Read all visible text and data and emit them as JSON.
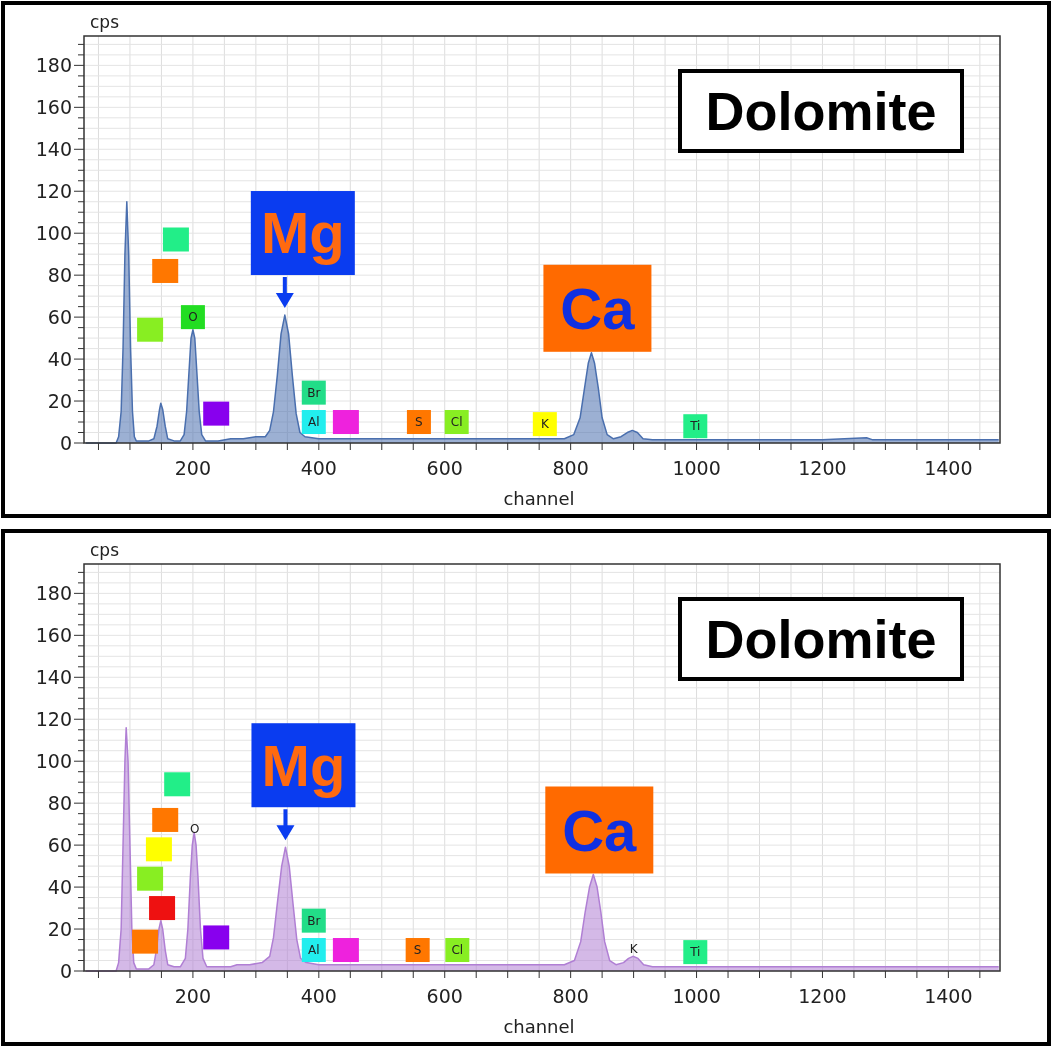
{
  "chart_data": [
    {
      "type": "area",
      "title": "Dolomite",
      "xlabel": "channel",
      "ylabel": "cps",
      "xlim": [
        27,
        1482
      ],
      "ylim": [
        0,
        194
      ],
      "xticks": [
        {
          "value": 50,
          "label": null
        },
        {
          "value": 100,
          "label": null
        },
        {
          "value": 150,
          "label": null
        },
        200,
        {
          "value": 250,
          "label": null
        },
        {
          "value": 300,
          "label": null
        },
        {
          "value": 350,
          "label": null
        },
        400,
        {
          "value": 450,
          "label": null
        },
        {
          "value": 500,
          "label": null
        },
        {
          "value": 550,
          "label": null
        },
        600,
        {
          "value": 650,
          "label": null
        },
        {
          "value": 700,
          "label": null
        },
        {
          "value": 750,
          "label": null
        },
        800,
        {
          "value": 850,
          "label": null
        },
        {
          "value": 900,
          "label": null
        },
        {
          "value": 950,
          "label": null
        },
        1000,
        {
          "value": 1050,
          "label": null
        },
        {
          "value": 1100,
          "label": null
        },
        {
          "value": 1150,
          "label": null
        },
        1200,
        {
          "value": 1250,
          "label": null
        },
        {
          "value": 1300,
          "label": null
        },
        {
          "value": 1350,
          "label": null
        },
        1400,
        {
          "value": 1450,
          "label": null
        }
      ],
      "yticks": [
        0,
        {
          "value": 5,
          "label": null
        },
        {
          "value": 10,
          "label": null
        },
        {
          "value": 15,
          "label": null
        },
        20,
        {
          "value": 25,
          "label": null
        },
        {
          "value": 30,
          "label": null
        },
        {
          "value": 35,
          "label": null
        },
        40,
        {
          "value": 45,
          "label": null
        },
        {
          "value": 50,
          "label": null
        },
        {
          "value": 55,
          "label": null
        },
        60,
        {
          "value": 65,
          "label": null
        },
        {
          "value": 70,
          "label": null
        },
        {
          "value": 75,
          "label": null
        },
        80,
        {
          "value": 85,
          "label": null
        },
        {
          "value": 90,
          "label": null
        },
        {
          "value": 95,
          "label": null
        },
        100,
        {
          "value": 105,
          "label": null
        },
        {
          "value": 110,
          "label": null
        },
        {
          "value": 115,
          "label": null
        },
        120,
        {
          "value": 125,
          "label": null
        },
        {
          "value": 130,
          "label": null
        },
        {
          "value": 135,
          "label": null
        },
        140,
        {
          "value": 145,
          "label": null
        },
        {
          "value": 150,
          "label": null
        },
        {
          "value": 155,
          "label": null
        },
        160,
        {
          "value": 165,
          "label": null
        },
        {
          "value": 170,
          "label": null
        },
        {
          "value": 175,
          "label": null
        },
        180,
        {
          "value": 185,
          "label": null
        },
        {
          "value": 190,
          "label": null
        }
      ],
      "grid": true,
      "series": [
        {
          "color": "#4a6fae",
          "x": [
            30,
            60,
            78,
            82,
            86,
            89,
            92,
            95,
            98,
            101,
            104,
            107,
            110,
            130,
            138,
            143,
            147,
            149,
            152,
            156,
            160,
            170,
            180,
            186,
            190,
            194,
            197,
            200,
            203,
            206,
            210,
            214,
            220,
            240,
            260,
            280,
            300,
            315,
            322,
            328,
            334,
            340,
            346,
            352,
            358,
            364,
            370,
            378,
            400,
            450,
            500,
            550,
            600,
            650,
            700,
            750,
            790,
            805,
            815,
            822,
            828,
            833,
            838,
            844,
            850,
            858,
            868,
            880,
            890,
            898,
            906,
            915,
            930,
            1000,
            1100,
            1200,
            1270,
            1280,
            1400,
            1480
          ],
          "values": [
            0,
            0,
            0,
            3,
            15,
            45,
            90,
            115,
            90,
            45,
            15,
            3,
            1,
            1,
            2,
            8,
            16,
            19,
            16,
            8,
            2,
            1,
            1,
            4,
            15,
            35,
            50,
            54,
            50,
            35,
            15,
            4,
            1,
            1,
            2,
            2,
            3,
            3,
            6,
            15,
            32,
            52,
            61,
            52,
            32,
            14,
            5,
            3,
            2,
            2,
            2,
            2,
            2,
            2,
            2,
            2,
            2,
            4,
            12,
            26,
            38,
            43,
            38,
            26,
            12,
            4,
            2,
            3,
            5,
            6,
            5,
            2,
            1.5,
            1.5,
            1.5,
            1.5,
            2.5,
            1.5,
            1.5,
            1.5
          ]
        }
      ],
      "annotations": [
        {
          "text": "Mg",
          "x": 346,
          "y": 61
        },
        {
          "text": "Ca",
          "x": 833,
          "y": 43
        },
        {
          "text": "O",
          "x": 200,
          "y": 60
        },
        {
          "text": "Br",
          "x": 392,
          "y": 24
        },
        {
          "text": "Al",
          "x": 392,
          "y": 10
        },
        {
          "text": "S",
          "x": 559,
          "y": 10
        },
        {
          "text": "Cl",
          "x": 619,
          "y": 10
        },
        {
          "text": "K",
          "x": 759,
          "y": 9
        },
        {
          "text": "Ti",
          "x": 998,
          "y": 8
        }
      ]
    },
    {
      "type": "area",
      "title": "Dolomite",
      "xlabel": "channel",
      "ylabel": "cps",
      "xlim": [
        27,
        1482
      ],
      "ylim": [
        0,
        194
      ],
      "xticks": [
        {
          "value": 50,
          "label": null
        },
        {
          "value": 100,
          "label": null
        },
        {
          "value": 150,
          "label": null
        },
        200,
        {
          "value": 250,
          "label": null
        },
        {
          "value": 300,
          "label": null
        },
        {
          "value": 350,
          "label": null
        },
        400,
        {
          "value": 450,
          "label": null
        },
        {
          "value": 500,
          "label": null
        },
        {
          "value": 550,
          "label": null
        },
        600,
        {
          "value": 650,
          "label": null
        },
        {
          "value": 700,
          "label": null
        },
        {
          "value": 750,
          "label": null
        },
        800,
        {
          "value": 850,
          "label": null
        },
        {
          "value": 900,
          "label": null
        },
        {
          "value": 950,
          "label": null
        },
        1000,
        {
          "value": 1050,
          "label": null
        },
        {
          "value": 1100,
          "label": null
        },
        {
          "value": 1150,
          "label": null
        },
        1200,
        {
          "value": 1250,
          "label": null
        },
        {
          "value": 1300,
          "label": null
        },
        {
          "value": 1350,
          "label": null
        },
        1400,
        {
          "value": 1450,
          "label": null
        }
      ],
      "yticks": [
        0,
        {
          "value": 5,
          "label": null
        },
        {
          "value": 10,
          "label": null
        },
        {
          "value": 15,
          "label": null
        },
        20,
        {
          "value": 25,
          "label": null
        },
        {
          "value": 30,
          "label": null
        },
        {
          "value": 35,
          "label": null
        },
        40,
        {
          "value": 45,
          "label": null
        },
        {
          "value": 50,
          "label": null
        },
        {
          "value": 55,
          "label": null
        },
        60,
        {
          "value": 65,
          "label": null
        },
        {
          "value": 70,
          "label": null
        },
        {
          "value": 75,
          "label": null
        },
        80,
        {
          "value": 85,
          "label": null
        },
        {
          "value": 90,
          "label": null
        },
        {
          "value": 95,
          "label": null
        },
        100,
        {
          "value": 105,
          "label": null
        },
        {
          "value": 110,
          "label": null
        },
        {
          "value": 115,
          "label": null
        },
        120,
        {
          "value": 125,
          "label": null
        },
        {
          "value": 130,
          "label": null
        },
        {
          "value": 135,
          "label": null
        },
        140,
        {
          "value": 145,
          "label": null
        },
        {
          "value": 150,
          "label": null
        },
        {
          "value": 155,
          "label": null
        },
        160,
        {
          "value": 165,
          "label": null
        },
        {
          "value": 170,
          "label": null
        },
        {
          "value": 175,
          "label": null
        },
        180,
        {
          "value": 185,
          "label": null
        },
        {
          "value": 190,
          "label": null
        }
      ],
      "grid": true,
      "series": [
        {
          "color": "#b07fd4",
          "x": [
            30,
            60,
            78,
            82,
            86,
            89,
            92,
            94,
            97,
            100,
            103,
            106,
            110,
            130,
            138,
            142,
            146,
            149,
            152,
            156,
            160,
            170,
            180,
            188,
            192,
            196,
            199,
            202,
            205,
            208,
            212,
            216,
            222,
            240,
            260,
            270,
            290,
            310,
            322,
            328,
            334,
            341,
            347,
            353,
            359,
            365,
            371,
            380,
            400,
            450,
            500,
            550,
            600,
            650,
            700,
            750,
            790,
            806,
            816,
            823,
            830,
            836,
            842,
            848,
            854,
            862,
            872,
            884,
            892,
            899,
            907,
            916,
            930,
            1000,
            1100,
            1200,
            1300,
            1400,
            1480
          ],
          "values": [
            0,
            0,
            0,
            4,
            20,
            60,
            100,
            116,
            100,
            60,
            20,
            4,
            1,
            1,
            3,
            10,
            20,
            24,
            20,
            10,
            3,
            2,
            2,
            6,
            20,
            45,
            60,
            66,
            60,
            45,
            20,
            6,
            2,
            2,
            2,
            3,
            3,
            4,
            7,
            16,
            32,
            50,
            59,
            50,
            32,
            15,
            6,
            4,
            3,
            3,
            3,
            3,
            3,
            3,
            3,
            3,
            3,
            5,
            14,
            28,
            40,
            46,
            40,
            28,
            14,
            5,
            3,
            4,
            6,
            7,
            6,
            3,
            2,
            2,
            2,
            2,
            2,
            2,
            2
          ]
        }
      ],
      "annotations": [
        {
          "text": "Mg",
          "x": 347,
          "y": 59
        },
        {
          "text": "Ca",
          "x": 836,
          "y": 46
        },
        {
          "text": "O",
          "x": 203,
          "y": 68
        },
        {
          "text": "Br",
          "x": 392,
          "y": 24
        },
        {
          "text": "Al",
          "x": 392,
          "y": 10
        },
        {
          "text": "S",
          "x": 557,
          "y": 10
        },
        {
          "text": "Cl",
          "x": 620,
          "y": 10
        },
        "K",
        {
          "text": "Ti",
          "x": 998,
          "y": 9
        }
      ]
    }
  ]
}
